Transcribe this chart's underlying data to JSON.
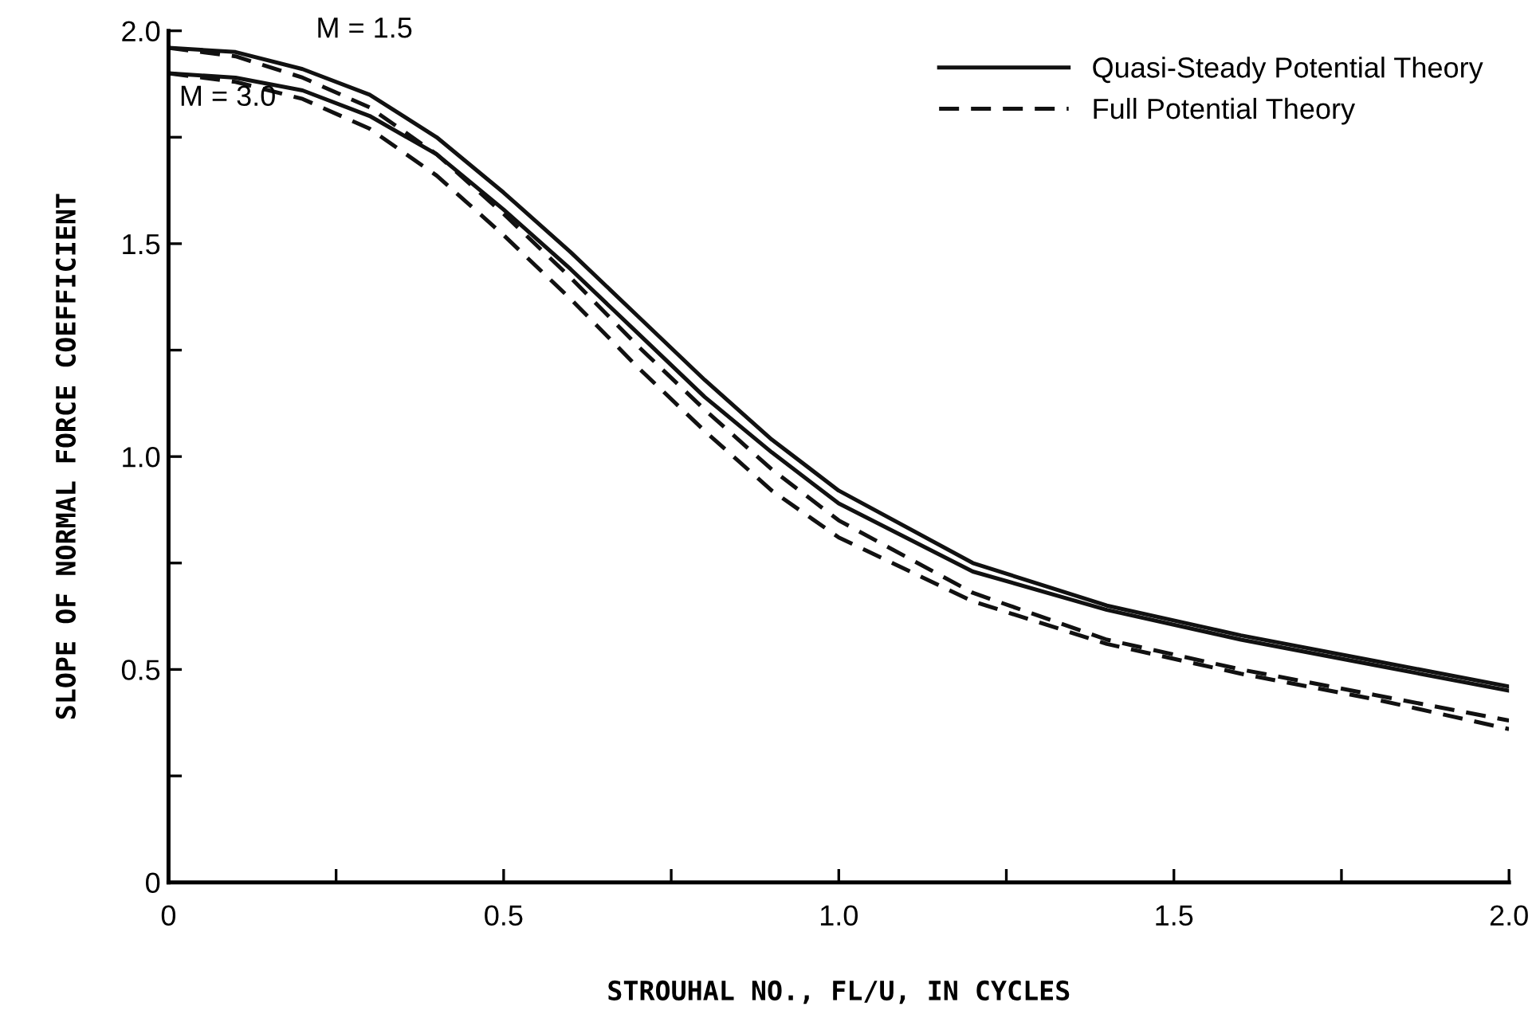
{
  "chart_data": {
    "type": "line",
    "xlabel": "STROUHAL NO., FL/U, IN CYCLES",
    "ylabel": "SLOPE OF NORMAL FORCE COEFFICIENT",
    "x": [
      0,
      0.1,
      0.2,
      0.3,
      0.4,
      0.5,
      0.6,
      0.7,
      0.8,
      0.9,
      1.0,
      1.2,
      1.4,
      1.6,
      1.8,
      2.0
    ],
    "series": [
      {
        "name": "Quasi-Steady Potential Theory",
        "color": "#111111",
        "line_style": "solid",
        "values": [
          1.96,
          1.95,
          1.91,
          1.85,
          1.75,
          1.62,
          1.48,
          1.33,
          1.18,
          1.04,
          0.92,
          0.75,
          0.65,
          0.58,
          0.52,
          0.46
        ]
      },
      {
        "color": "#111111",
        "line_style": "solid",
        "values": [
          1.9,
          1.89,
          1.86,
          1.8,
          1.71,
          1.58,
          1.44,
          1.29,
          1.14,
          1.01,
          0.89,
          0.73,
          0.64,
          0.57,
          0.51,
          0.45
        ]
      },
      {
        "name": "Full Potential Theory",
        "color": "#111111",
        "line_style": "dashed",
        "values": [
          1.96,
          1.94,
          1.89,
          1.82,
          1.71,
          1.57,
          1.42,
          1.26,
          1.11,
          0.97,
          0.85,
          0.68,
          0.57,
          0.5,
          0.44,
          0.38
        ]
      },
      {
        "color": "#111111",
        "line_style": "dashed",
        "values": [
          1.9,
          1.88,
          1.84,
          1.77,
          1.66,
          1.52,
          1.37,
          1.21,
          1.06,
          0.92,
          0.81,
          0.66,
          0.56,
          0.49,
          0.43,
          0.36
        ]
      }
    ],
    "annotations": [
      "M = 1.5",
      "M = 3.0"
    ],
    "xlim": [
      0,
      2.0
    ],
    "ylim": [
      0,
      2.0
    ],
    "xticks": [
      {
        "value": 0,
        "label": "0"
      },
      {
        "value": 0.25,
        "label": null
      },
      {
        "value": 0.5,
        "label": "0.5"
      },
      {
        "value": 0.75,
        "label": null
      },
      {
        "value": 1.0,
        "label": "1.0"
      },
      {
        "value": 1.25,
        "label": null
      },
      {
        "value": 1.5,
        "label": "1.5"
      },
      {
        "value": 1.75,
        "label": null
      },
      {
        "value": 2.0,
        "label": "2.0"
      }
    ],
    "yticks": [
      {
        "value": 0,
        "label": "0"
      },
      {
        "value": 0.25,
        "label": null
      },
      {
        "value": 0.5,
        "label": "0.5"
      },
      {
        "value": 0.75,
        "label": null
      },
      {
        "value": 1.0,
        "label": "1.0"
      },
      {
        "value": 1.25,
        "label": null
      },
      {
        "value": 1.5,
        "label": "1.5"
      },
      {
        "value": 1.75,
        "label": null
      },
      {
        "value": 2.0,
        "label": "2.0"
      }
    ],
    "grid": false,
    "legend": "top right",
    "marker": "none"
  }
}
